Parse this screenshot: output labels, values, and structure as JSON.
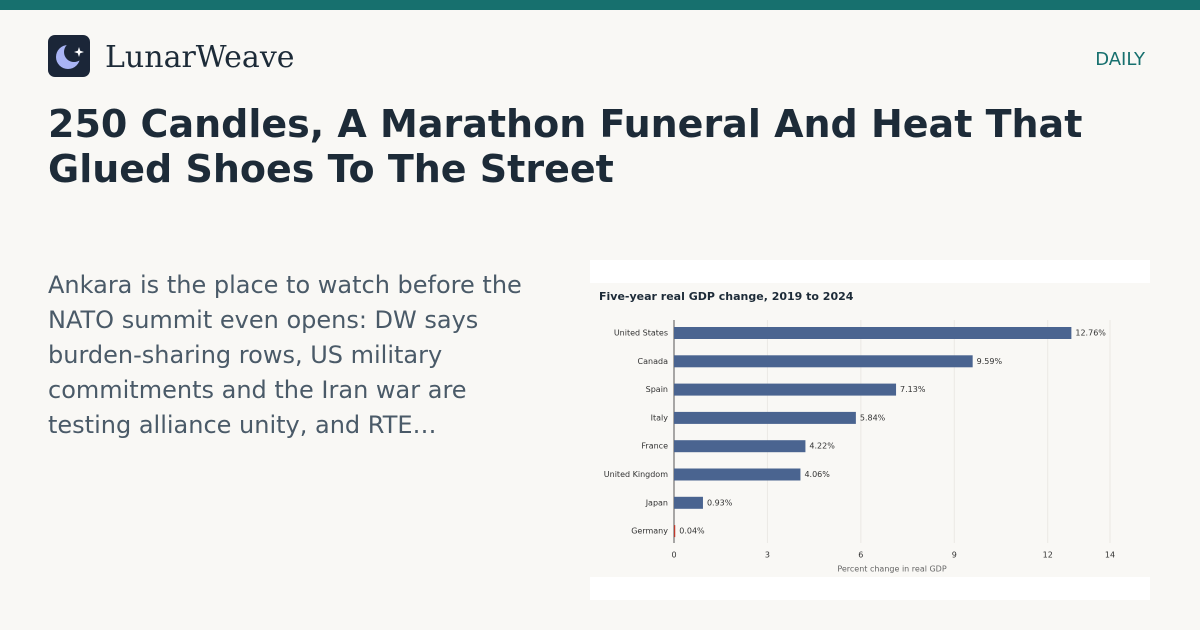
{
  "header": {
    "brand": "LunarWeave",
    "section": "DAILY"
  },
  "headline": "250 Candles, A Marathon Funeral And Heat That Glued Shoes To The Street",
  "summary": "Ankara is the place to watch before the NATO summit even opens: DW says burden-sharing rows, US military commitments and the Iran war are testing alliance unity, and RTE…",
  "chart_data": {
    "type": "bar",
    "orientation": "horizontal",
    "title": "Five-year real GDP change, 2019 to 2024",
    "x_label": "Percent change in real GDP",
    "categories": [
      "United States",
      "Canada",
      "Spain",
      "Italy",
      "France",
      "United Kingdom",
      "Japan",
      "Germany"
    ],
    "values": [
      12.76,
      9.59,
      7.13,
      5.84,
      4.22,
      4.06,
      0.93,
      0.04
    ],
    "value_labels": [
      "12.76%",
      "9.59%",
      "7.13%",
      "5.84%",
      "4.22%",
      "4.06%",
      "0.93%",
      "0.04%"
    ],
    "colors": [
      "#4a6490",
      "#4a6490",
      "#4a6490",
      "#4a6490",
      "#4a6490",
      "#4a6490",
      "#4a6490",
      "#c0392b"
    ],
    "xlim": [
      0,
      14
    ],
    "xticks": [
      0,
      3,
      6,
      9,
      12,
      14
    ],
    "grid": true
  }
}
